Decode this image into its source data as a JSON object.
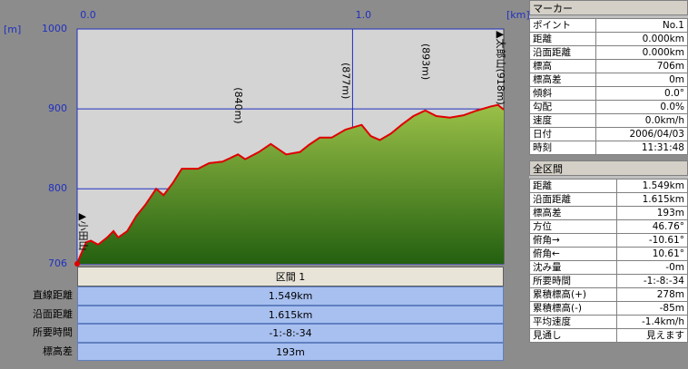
{
  "chart_data": {
    "type": "area",
    "x_unit": "[km]",
    "y_unit": "[m]",
    "x": [
      0,
      0.01,
      0.033,
      0.05,
      0.076,
      0.109,
      0.132,
      0.149,
      0.182,
      0.215,
      0.248,
      0.287,
      0.314,
      0.347,
      0.38,
      0.439,
      0.479,
      0.528,
      0.584,
      0.61,
      0.66,
      0.703,
      0.759,
      0.809,
      0.842,
      0.881,
      0.924,
      0.974,
      1.033,
      1.066,
      1.099,
      1.139,
      1.178,
      1.221,
      1.264,
      1.304,
      1.353,
      1.403,
      1.452,
      1.502,
      1.528,
      1.549
    ],
    "values": [
      706,
      715,
      733,
      735,
      730,
      739,
      747,
      739,
      747,
      766,
      780,
      800,
      792,
      807,
      825,
      825,
      832,
      834,
      843,
      837,
      846,
      856,
      843,
      846,
      855,
      864,
      864,
      874,
      880,
      866,
      861,
      869,
      880,
      891,
      898,
      891,
      889,
      892,
      898,
      903,
      905,
      899
    ],
    "xlim": [
      0,
      1.549
    ],
    "ylim": [
      706,
      1000
    ],
    "xticks": [
      {
        "value": 0,
        "label": "0.0"
      },
      {
        "value": 1,
        "label": "1.0"
      }
    ],
    "yticks": [
      706,
      800,
      900,
      1000
    ],
    "grid": true,
    "color": "#e00000",
    "fill": "#5f9a30",
    "annotations": [
      {
        "text": "▲小田山",
        "x": 0
      },
      {
        "text": "(840m)",
        "x": 0.584
      },
      {
        "text": "(877m)",
        "x": 0.974
      },
      {
        "text": "(893m)",
        "x": 1.264
      },
      {
        "text": "▲太郎山(918m)",
        "x": 1.549
      }
    ]
  },
  "section": {
    "title": "区間 1",
    "rows": [
      [
        "直線距離",
        "1.549km"
      ],
      [
        "沿面距離",
        "1.615km"
      ],
      [
        "所要時間",
        "-1:-8:-34"
      ],
      [
        "標高差",
        "193m"
      ]
    ]
  },
  "marker": {
    "title": "マーカー",
    "rows": [
      [
        "ポイント",
        "No.1"
      ],
      [
        "距離",
        "0.000km"
      ],
      [
        "沿面距離",
        "0.000km"
      ],
      [
        "標高",
        "706m"
      ],
      [
        "標高差",
        "0m"
      ],
      [
        "傾斜",
        "0.0°"
      ],
      [
        "勾配",
        "0.0%"
      ],
      [
        "速度",
        "0.0km/h"
      ],
      [
        "日付",
        "2006/04/03"
      ],
      [
        "時刻",
        "11:31:48"
      ]
    ]
  },
  "total": {
    "title": "全区間",
    "rows": [
      [
        "距離",
        "1.549km"
      ],
      [
        "沿面距離",
        "1.615km"
      ],
      [
        "標高差",
        "193m"
      ],
      [
        "方位",
        "46.76°"
      ],
      [
        "俯角→",
        "-10.61°"
      ],
      [
        "俯角←",
        "10.61°"
      ],
      [
        "沈み量",
        "-0m"
      ],
      [
        "所要時間",
        "-1:-8:-34"
      ],
      [
        "累積標高(+)",
        "278m"
      ],
      [
        "累積標高(-)",
        "-85m"
      ],
      [
        "平均速度",
        "-1.4km/h"
      ],
      [
        "見通し",
        "見えます"
      ]
    ]
  }
}
